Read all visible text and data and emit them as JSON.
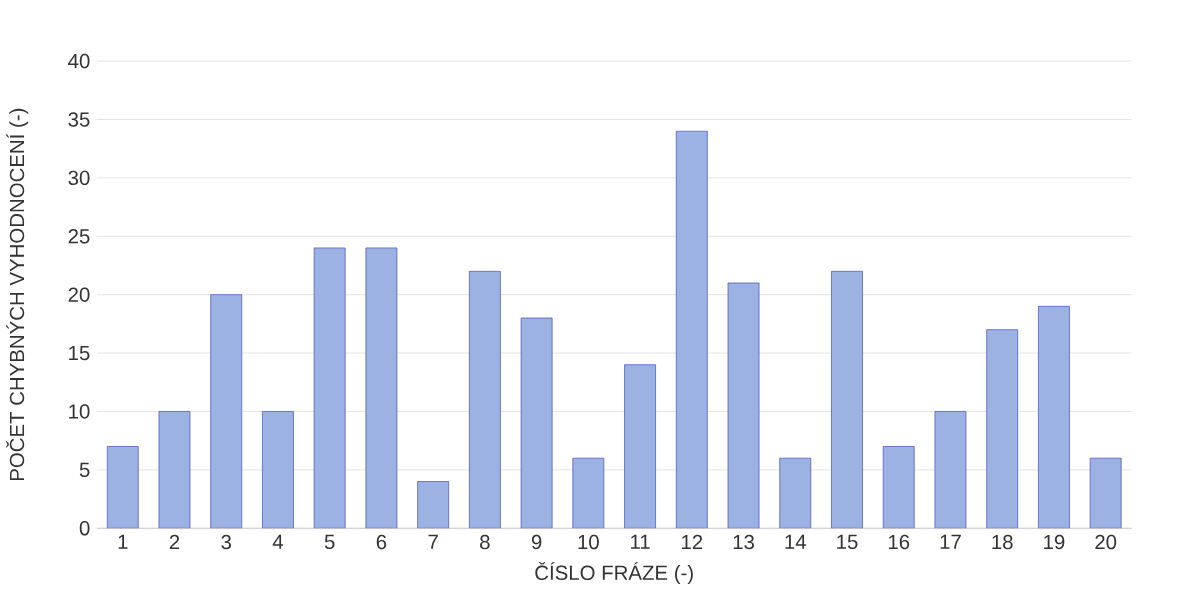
{
  "chart_data": {
    "type": "bar",
    "xlabel": "ČÍSLO FRÁZE (-)",
    "ylabel": "POČET CHYBNÝCH VYHODNOCENÍ (-)",
    "categories": [
      "1",
      "2",
      "3",
      "4",
      "5",
      "6",
      "7",
      "8",
      "9",
      "10",
      "11",
      "12",
      "13",
      "14",
      "15",
      "16",
      "17",
      "18",
      "19",
      "20"
    ],
    "values": [
      7,
      10,
      20,
      10,
      24,
      24,
      4,
      22,
      18,
      6,
      14,
      34,
      21,
      6,
      22,
      7,
      10,
      17,
      19,
      6
    ],
    "color": "#9cb2e2",
    "ylim": [
      0,
      40
    ],
    "yticks": [
      0,
      5,
      10,
      15,
      20,
      25,
      30,
      35,
      40
    ],
    "grid": "y"
  }
}
